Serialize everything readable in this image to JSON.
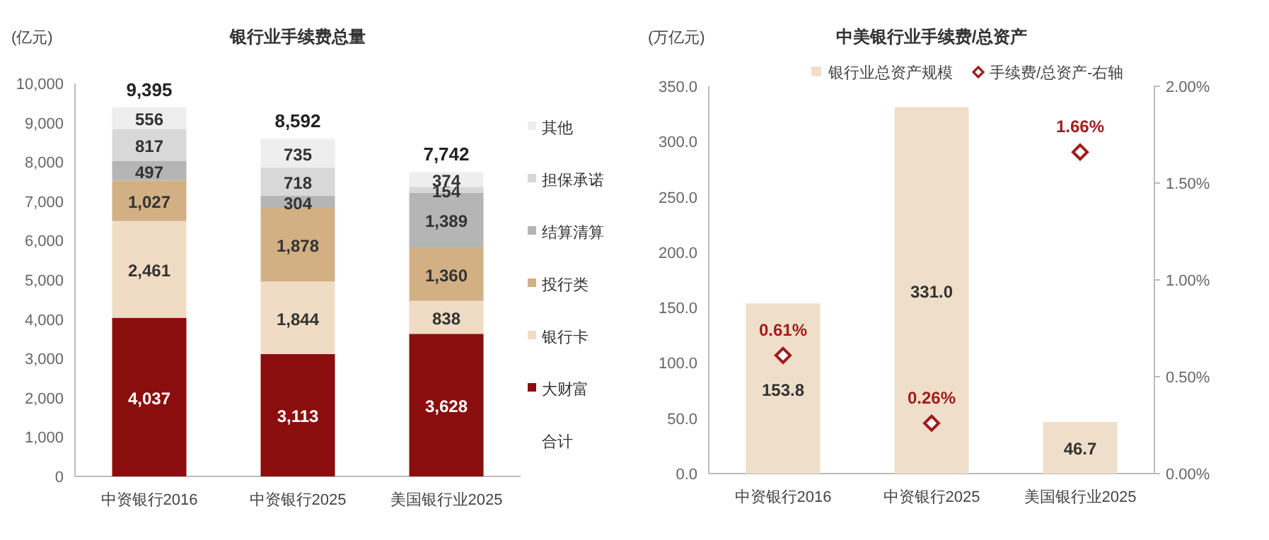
{
  "chart_data": [
    {
      "type": "bar",
      "title": "银行业手续费总量",
      "ylabel": "(亿元)",
      "stacked": true,
      "legend": "right",
      "categories": [
        "中资银行2016",
        "中资银行2025",
        "美国银行业2025"
      ],
      "ylim": [
        0,
        10000
      ],
      "yticks": [
        0,
        {
          "value": 1000,
          "label": "1,000"
        },
        {
          "value": 2000,
          "label": "2,000"
        },
        {
          "value": 3000,
          "label": "3,000"
        },
        {
          "value": 4000,
          "label": "4,000"
        },
        {
          "value": 5000,
          "label": "5,000"
        },
        {
          "value": 6000,
          "label": "6,000"
        },
        {
          "value": 7000,
          "label": "7,000"
        },
        {
          "value": 8000,
          "label": "8,000"
        },
        {
          "value": 9000,
          "label": "9,000"
        },
        {
          "value": 10000,
          "label": "10,000"
        }
      ],
      "series": [
        {
          "name": "大财富",
          "color": "#8b0e0e",
          "values": [
            4037,
            3113,
            3628
          ],
          "value_labels": [
            "4,037",
            "3,113",
            "3,628"
          ]
        },
        {
          "name": "银行卡",
          "color": "#f0dcc4",
          "values": [
            2461,
            1844,
            838
          ],
          "value_labels": [
            "2,461",
            "1,844",
            "838"
          ]
        },
        {
          "name": "投行类",
          "color": "#d2b083",
          "values": [
            1027,
            1878,
            1360
          ],
          "value_labels": [
            "1,027",
            "1,878",
            "1,360"
          ]
        },
        {
          "name": "结算清算",
          "color": "#b5b5b5",
          "values": [
            497,
            304,
            1389
          ],
          "value_labels": [
            "497",
            "304",
            "1,389"
          ]
        },
        {
          "name": "担保承诺",
          "color": "#d8d8d8",
          "values": [
            817,
            718,
            154
          ],
          "value_labels": [
            "817",
            "718",
            "154"
          ]
        },
        {
          "name": "其他",
          "color": "#eeeeee",
          "values": [
            556,
            735,
            374
          ],
          "value_labels": [
            "556",
            "735",
            "374"
          ]
        }
      ],
      "totals": [
        "9,395",
        "8,592",
        "7,742"
      ],
      "annotations": [
        "合计"
      ]
    },
    {
      "type": "bar",
      "title": "中美银行业手续费/总资产",
      "ylabel": "(万亿元)",
      "legend": "top",
      "marker": "diamond",
      "categories": [
        "中资银行2016",
        "中资银行2025",
        "美国银行业2025"
      ],
      "ylim": [
        0,
        350
      ],
      "yticks": [
        {
          "value": 0,
          "label": "0.0"
        },
        {
          "value": 50,
          "label": "50.0"
        },
        {
          "value": 100,
          "label": "100.0"
        },
        {
          "value": 150,
          "label": "150.0"
        },
        {
          "value": 200,
          "label": "200.0"
        },
        {
          "value": 250,
          "label": "250.0"
        },
        {
          "value": 300,
          "label": "300.0"
        },
        {
          "value": 350,
          "label": "350.0"
        }
      ],
      "y2lim": [
        0,
        2
      ],
      "y2ticks": [
        {
          "value": 0,
          "label": "0.00%"
        },
        {
          "value": 0.5,
          "label": "0.50%"
        },
        {
          "value": 1,
          "label": "1.00%"
        },
        {
          "value": 1.5,
          "label": "1.50%"
        },
        {
          "value": 2,
          "label": "2.00%"
        }
      ],
      "series": [
        {
          "name": "银行业总资产规模",
          "color": "#efdfca",
          "values": [
            153.8,
            331.0,
            46.7
          ],
          "value_labels": [
            "153.8",
            "331.0",
            "46.7"
          ]
        },
        {
          "name": "手续费/总资产-右轴",
          "type": "scatter",
          "axis": "y2",
          "color": "#a01c1c",
          "values": [
            0.61,
            0.26,
            1.66
          ],
          "value_labels": [
            "0.61%",
            "0.26%",
            "1.66%"
          ]
        }
      ]
    }
  ]
}
